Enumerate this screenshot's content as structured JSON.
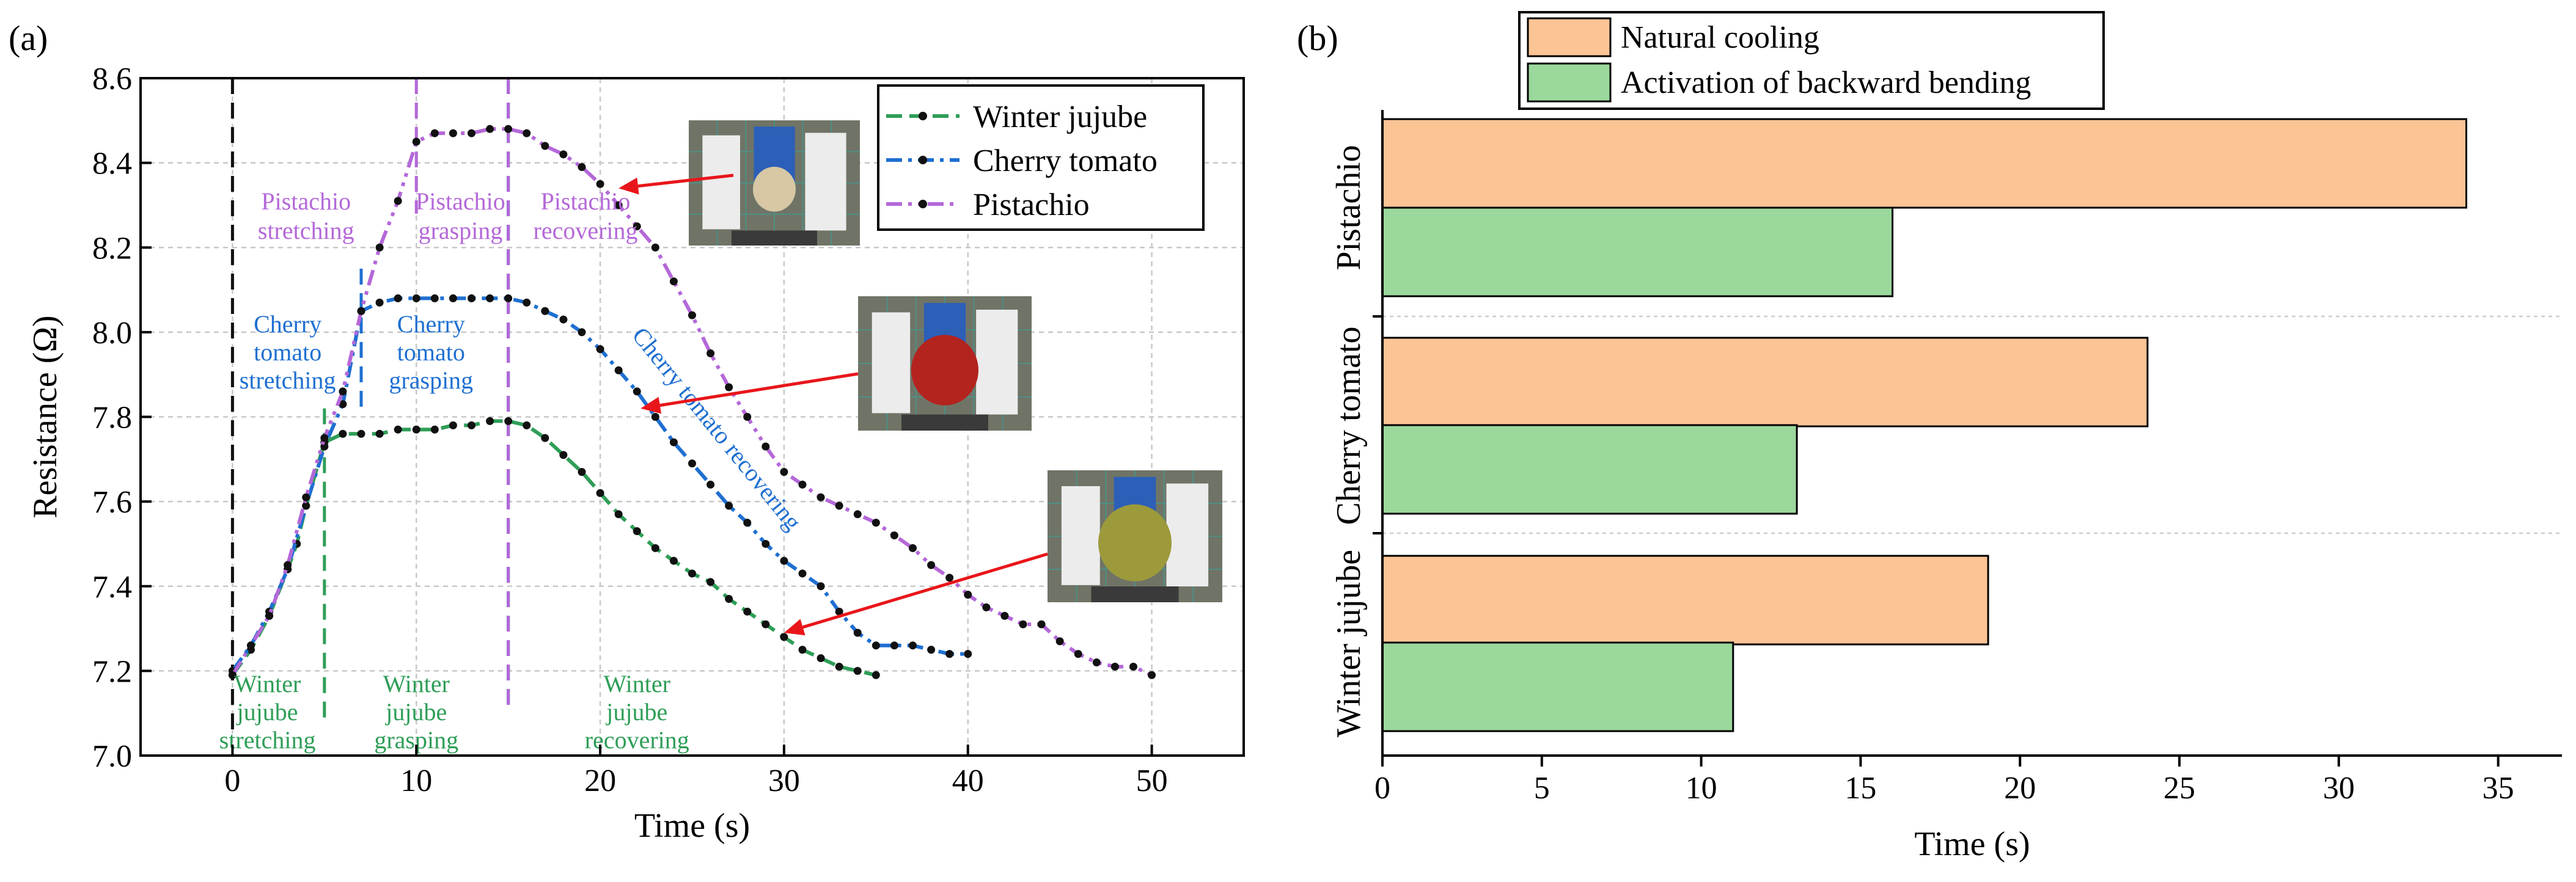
{
  "panel_a_label": "(a)",
  "panel_b_label": "(b)",
  "chart_data": [
    {
      "type": "line",
      "title": "",
      "xlabel": "Time (s)",
      "ylabel": "Resistance (Ω)",
      "xlim": [
        -5,
        55
      ],
      "ylim": [
        7.0,
        8.6
      ],
      "xticks": [
        0,
        10,
        20,
        30,
        40,
        50
      ],
      "yticks": [
        7.0,
        7.2,
        7.4,
        7.6,
        7.8,
        8.0,
        8.2,
        8.4,
        8.6
      ],
      "grid": true,
      "legend_position": "top-right",
      "series": [
        {
          "name": "Winter jujube",
          "color": "#2e9e57",
          "x": [
            0,
            1,
            2,
            3,
            3.5,
            4,
            5,
            6,
            7,
            8,
            9,
            10,
            11,
            12,
            13,
            14,
            15,
            16,
            17,
            18,
            19,
            20,
            21,
            22,
            23,
            24,
            25,
            26,
            27,
            28,
            29,
            30,
            31,
            32,
            33,
            34,
            35
          ],
          "y": [
            7.19,
            7.25,
            7.33,
            7.44,
            7.5,
            7.59,
            7.74,
            7.76,
            7.76,
            7.76,
            7.77,
            7.77,
            7.77,
            7.78,
            7.78,
            7.79,
            7.79,
            7.78,
            7.75,
            7.71,
            7.67,
            7.62,
            7.57,
            7.53,
            7.49,
            7.46,
            7.43,
            7.41,
            7.37,
            7.34,
            7.31,
            7.28,
            7.25,
            7.23,
            7.21,
            7.2,
            7.19
          ]
        },
        {
          "name": "Cherry tomato",
          "color": "#1f6fd1",
          "x": [
            0,
            1,
            2,
            3,
            4,
            5,
            6,
            7,
            8,
            9,
            10,
            11,
            12,
            13,
            14,
            15,
            16,
            17,
            18,
            19,
            20,
            21,
            22,
            23,
            24,
            25,
            26,
            27,
            28,
            29,
            30,
            31,
            32,
            33,
            34,
            35,
            36,
            37,
            38,
            39,
            40
          ],
          "y": [
            7.2,
            7.26,
            7.34,
            7.44,
            7.59,
            7.73,
            7.83,
            8.05,
            8.07,
            8.08,
            8.08,
            8.08,
            8.08,
            8.08,
            8.08,
            8.08,
            8.07,
            8.05,
            8.03,
            8.0,
            7.96,
            7.91,
            7.86,
            7.8,
            7.74,
            7.69,
            7.64,
            7.59,
            7.55,
            7.5,
            7.46,
            7.43,
            7.4,
            7.34,
            7.29,
            7.26,
            7.26,
            7.26,
            7.25,
            7.24,
            7.24
          ]
        },
        {
          "name": "Pistachio",
          "color": "#b468d8",
          "x": [
            0,
            1,
            2,
            3,
            4,
            5,
            6,
            7,
            8,
            9,
            10,
            11,
            12,
            13,
            14,
            15,
            16,
            17,
            18,
            19,
            20,
            21,
            22,
            23,
            24,
            25,
            26,
            27,
            28,
            29,
            30,
            31,
            32,
            33,
            34,
            35,
            36,
            37,
            38,
            39,
            40,
            41,
            42,
            43,
            44,
            45,
            46,
            47,
            48,
            49,
            50
          ],
          "y": [
            7.19,
            7.26,
            7.33,
            7.45,
            7.61,
            7.75,
            7.86,
            8.05,
            8.2,
            8.31,
            8.45,
            8.47,
            8.47,
            8.47,
            8.48,
            8.48,
            8.47,
            8.44,
            8.42,
            8.39,
            8.35,
            8.3,
            8.25,
            8.2,
            8.12,
            8.04,
            7.95,
            7.87,
            7.8,
            7.73,
            7.67,
            7.64,
            7.61,
            7.59,
            7.57,
            7.55,
            7.52,
            7.49,
            7.45,
            7.42,
            7.38,
            7.35,
            7.33,
            7.31,
            7.31,
            7.27,
            7.24,
            7.22,
            7.21,
            7.21,
            7.19
          ]
        }
      ],
      "vlines": [
        {
          "x": 0,
          "color": "#111111"
        },
        {
          "x": 5,
          "color": "#2e9e57"
        },
        {
          "x": 15,
          "color": "#2e9e57"
        },
        {
          "x": 7,
          "color": "#1f6fd1"
        },
        {
          "x": 15,
          "color": "#1f6fd1"
        },
        {
          "x": 10,
          "color": "#b468d8"
        },
        {
          "x": 15,
          "color": "#b468d8"
        }
      ],
      "annotations": [
        {
          "id": "wj_stretch",
          "lines": [
            "Winter",
            "jujube",
            "stretching"
          ],
          "color": "#2e9e57"
        },
        {
          "id": "wj_grasp",
          "lines": [
            "Winter",
            "jujube",
            "grasping"
          ],
          "color": "#2e9e57"
        },
        {
          "id": "wj_recover",
          "lines": [
            "Winter",
            "jujube",
            "recovering"
          ],
          "color": "#2e9e57"
        },
        {
          "id": "ct_stretch",
          "lines": [
            "Cherry",
            "tomato",
            "stretching"
          ],
          "color": "#1f6fd1"
        },
        {
          "id": "ct_grasp",
          "lines": [
            "Cherry",
            "tomato",
            "grasping"
          ],
          "color": "#1f6fd1"
        },
        {
          "id": "ct_recover",
          "lines": [
            "Cherry tomato recovering"
          ],
          "color": "#1f6fd1"
        },
        {
          "id": "pi_stretch",
          "lines": [
            "Pistachio",
            "stretching"
          ],
          "color": "#b468d8"
        },
        {
          "id": "pi_grasp",
          "lines": [
            "Pistachio",
            "grasping"
          ],
          "color": "#b468d8"
        },
        {
          "id": "pi_recover",
          "lines": [
            "Pistachio",
            "recovering"
          ],
          "color": "#b468d8"
        }
      ],
      "arrow_color": "#e8161b"
    },
    {
      "type": "bar",
      "orientation": "horizontal",
      "title": "",
      "xlabel": "Time (s)",
      "ylabel": "",
      "xlim": [
        0,
        37
      ],
      "xticks": [
        0,
        5,
        10,
        15,
        20,
        25,
        30,
        35
      ],
      "categories": [
        "Pistachio",
        "Cherry tomato",
        "Winter jujube"
      ],
      "legend_position": "top",
      "series": [
        {
          "name": "Natural cooling",
          "color": "#fbc495",
          "values": [
            34,
            24,
            19
          ]
        },
        {
          "name": "Activation of backward bending",
          "color": "#9bd89c",
          "values": [
            16,
            13,
            11
          ]
        }
      ]
    }
  ]
}
